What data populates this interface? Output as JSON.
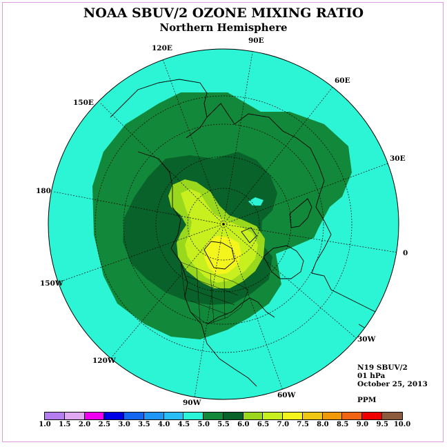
{
  "title": "NOAA SBUV/2 OZONE MIXING RATIO",
  "subtitle": "Northern Hemisphere",
  "longitude_labels": {
    "lon_90e": "90E",
    "lon_120e": "120E",
    "lon_60e": "60E",
    "lon_150e": "150E",
    "lon_30e": "30E",
    "lon_180": "180",
    "lon_0": "0",
    "lon_150w": "150W",
    "lon_30w": "30W",
    "lon_120w": "120W",
    "lon_60w": "60W",
    "lon_90w": "90W"
  },
  "info": {
    "instrument": "N19 SBUV/2",
    "level": "01 hPa",
    "date": "October 25, 2013",
    "units": "PPM"
  },
  "colorbar": {
    "ticks": [
      "1.0",
      "1.5",
      "2.0",
      "2.5",
      "3.0",
      "3.5",
      "4.0",
      "4.5",
      "5.0",
      "5.5",
      "6.0",
      "6.5",
      "7.0",
      "7.5",
      "8.0",
      "8.5",
      "9.0",
      "9.5",
      "10.0"
    ],
    "colors": [
      "#b47ef0",
      "#e0a8f0",
      "#f000f0",
      "#0000e6",
      "#1466f0",
      "#1e96f5",
      "#28bef5",
      "#2af5d8",
      "#12883a",
      "#08622a",
      "#9ad81e",
      "#c8f01e",
      "#f5f51e",
      "#f0c814",
      "#f09a0a",
      "#f06414",
      "#f00000",
      "#8c5a3c"
    ]
  },
  "map": {
    "background_color": "#2cf5d6",
    "colors": {
      "band_5_0": "#12883a",
      "band_5_5": "#08622a",
      "band_6_0": "#9ad81e",
      "band_6_5": "#c8f01e",
      "band_7_0": "#f5f51e"
    }
  }
}
